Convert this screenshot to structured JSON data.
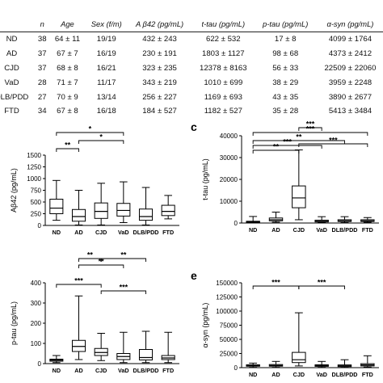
{
  "table": {
    "headers": [
      "",
      "n",
      "Age",
      "Sex (f/m)",
      "A β42 (pg/mL)",
      "t-tau (pg/mL)",
      "p-tau (pg/mL)",
      "α-syn (pg/mL)"
    ],
    "rows": [
      [
        "ND",
        "38",
        "64 ± 11",
        "19/19",
        "432 ± 243",
        "622 ± 532",
        "17 ± 8",
        "4099 ± 1764"
      ],
      [
        "AD",
        "37",
        "67 ± 7",
        "16/19",
        "230 ± 191",
        "1803 ± 1127",
        "98 ± 68",
        "4373 ± 2412"
      ],
      [
        "CJD",
        "37",
        "68 ± 8",
        "16/21",
        "323 ± 235",
        "12378 ± 8163",
        "56 ± 33",
        "22509 ± 22060"
      ],
      [
        "VaD",
        "28",
        "71 ± 7",
        "11/17",
        "343 ± 219",
        "1010 ± 699",
        "38 ± 29",
        "3959 ± 2248"
      ],
      [
        "DLB/PDD",
        "27",
        "70 ± 9",
        "13/14",
        "256 ± 227",
        "1169 ± 693",
        "43 ± 35",
        "3890 ± 2677"
      ],
      [
        "FTD",
        "34",
        "67 ± 8",
        "16/18",
        "184 ± 527",
        "1182 ± 527",
        "35 ± 28",
        "5413 ± 3484"
      ]
    ]
  },
  "panels": {
    "b": {
      "label": "",
      "sig": [
        "**",
        "*",
        "*"
      ]
    },
    "c": {
      "label": "c",
      "sig": [
        "**",
        "***",
        "**",
        "***",
        "***",
        "***"
      ]
    },
    "d": {
      "label": "",
      "sig": [
        "**",
        "**",
        "**",
        "***",
        "***"
      ]
    },
    "e": {
      "label": "e",
      "sig": [
        "***",
        "***"
      ]
    }
  },
  "chart_data": [
    {
      "type": "box",
      "ylabel": "Aβ42 (pg/mL)",
      "ylim": [
        0,
        1500
      ],
      "yticks": [
        "0",
        "250",
        "500",
        "750",
        "1000",
        "1250",
        "1500"
      ],
      "categories": [
        "ND",
        "AD",
        "CJD",
        "VaD",
        "DLB/PDD",
        "FTD"
      ],
      "boxes": [
        {
          "min": 110,
          "q1": 250,
          "median": 370,
          "q3": 560,
          "max": 960
        },
        {
          "min": 10,
          "q1": 90,
          "median": 190,
          "q3": 340,
          "max": 750
        },
        {
          "min": 10,
          "q1": 150,
          "median": 300,
          "q3": 480,
          "max": 900
        },
        {
          "min": 60,
          "q1": 200,
          "median": 320,
          "q3": 470,
          "max": 930
        },
        {
          "min": 10,
          "q1": 110,
          "median": 190,
          "q3": 350,
          "max": 810
        },
        {
          "min": 140,
          "q1": 210,
          "median": 300,
          "q3": 430,
          "max": 640
        }
      ]
    },
    {
      "type": "box",
      "ylabel": "t-tau (pg/mL)",
      "ylim": [
        0,
        40000
      ],
      "yticks": [
        "0",
        "10000",
        "20000",
        "30000",
        "40000"
      ],
      "categories": [
        "ND",
        "AD",
        "CJD",
        "VaD",
        "DLB/PDD",
        "FTD"
      ],
      "boxes": [
        {
          "min": 100,
          "q1": 300,
          "median": 550,
          "q3": 800,
          "max": 3000
        },
        {
          "min": 400,
          "q1": 1000,
          "median": 1500,
          "q3": 2300,
          "max": 5000
        },
        {
          "min": 1500,
          "q1": 7000,
          "median": 11500,
          "q3": 17000,
          "max": 33500
        },
        {
          "min": 200,
          "q1": 500,
          "median": 800,
          "q3": 1300,
          "max": 2900
        },
        {
          "min": 200,
          "q1": 700,
          "median": 1000,
          "q3": 1500,
          "max": 2900
        },
        {
          "min": 300,
          "q1": 700,
          "median": 1000,
          "q3": 1500,
          "max": 2500
        }
      ]
    },
    {
      "type": "box",
      "ylabel": "p-tau (pg/mL)",
      "ylim": [
        0,
        400
      ],
      "yticks": [
        "0",
        "100",
        "200",
        "300",
        "400"
      ],
      "categories": [
        "ND",
        "AD",
        "CJD",
        "VaD",
        "DLB/PDD",
        "FTD"
      ],
      "boxes": [
        {
          "min": 5,
          "q1": 12,
          "median": 17,
          "q3": 22,
          "max": 40
        },
        {
          "min": 20,
          "q1": 60,
          "median": 85,
          "q3": 115,
          "max": 335
        },
        {
          "min": 15,
          "q1": 40,
          "median": 55,
          "q3": 75,
          "max": 150
        },
        {
          "min": 5,
          "q1": 20,
          "median": 35,
          "q3": 50,
          "max": 155
        },
        {
          "min": 5,
          "q1": 18,
          "median": 30,
          "q3": 70,
          "max": 160
        },
        {
          "min": 5,
          "q1": 20,
          "median": 28,
          "q3": 40,
          "max": 155
        }
      ]
    },
    {
      "type": "box",
      "ylabel": "α-syn (pg/mL)",
      "ylim": [
        0,
        150000
      ],
      "yticks": [
        "0",
        "25000",
        "50000",
        "75000",
        "100000",
        "125000",
        "150000"
      ],
      "categories": [
        "ND",
        "AD",
        "CJD",
        "VaD",
        "DLB/PDD",
        "FTD"
      ],
      "boxes": [
        {
          "min": 500,
          "q1": 2500,
          "median": 3700,
          "q3": 5000,
          "max": 8000
        },
        {
          "min": 500,
          "q1": 2600,
          "median": 3800,
          "q3": 5500,
          "max": 11000
        },
        {
          "min": 3000,
          "q1": 9000,
          "median": 14000,
          "q3": 27000,
          "max": 97000
        },
        {
          "min": 500,
          "q1": 2300,
          "median": 3500,
          "q3": 5000,
          "max": 11000
        },
        {
          "min": 500,
          "q1": 1800,
          "median": 3200,
          "q3": 4800,
          "max": 14000
        },
        {
          "min": 1000,
          "q1": 3000,
          "median": 4800,
          "q3": 7000,
          "max": 21000
        }
      ]
    }
  ]
}
